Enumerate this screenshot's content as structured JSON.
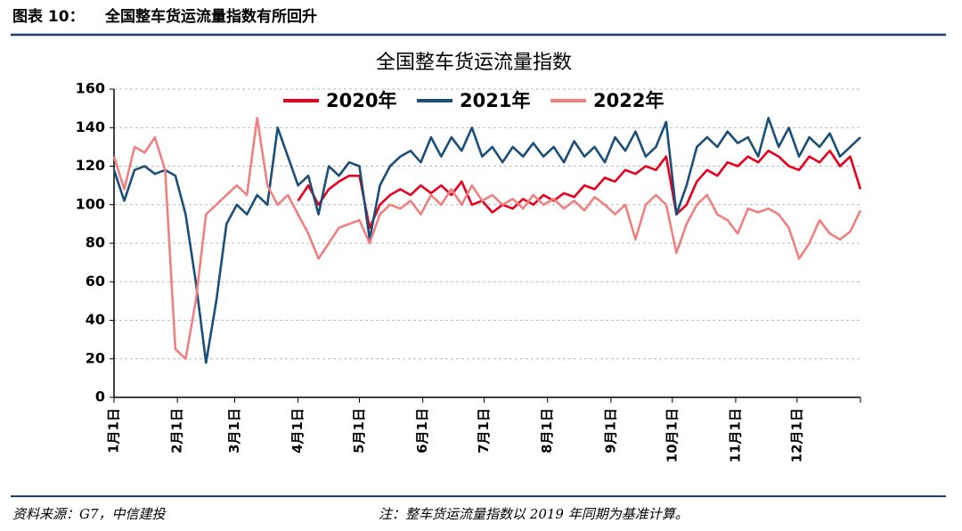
{
  "header": {
    "label": "图表 10：",
    "title": "全国整车货运流量指数有所回升"
  },
  "chart_data": {
    "type": "line",
    "title": "全国整车货运流量指数",
    "x": [
      0,
      5,
      10,
      15,
      20,
      25,
      30,
      35,
      40,
      45,
      50,
      55,
      60,
      65,
      70,
      75,
      80,
      85,
      90,
      95,
      100,
      105,
      110,
      115,
      120,
      125,
      130,
      135,
      140,
      145,
      150,
      155,
      160,
      165,
      170,
      175,
      180,
      185,
      190,
      195,
      200,
      205,
      210,
      215,
      220,
      225,
      230,
      235,
      240,
      245,
      250,
      255,
      260,
      265,
      270,
      275,
      280,
      285,
      290,
      295,
      300,
      305,
      310,
      315,
      320,
      325,
      330,
      335,
      340,
      345,
      350,
      355,
      360,
      365
    ],
    "xlim": [
      0,
      365
    ],
    "xticks": [
      {
        "value": 0,
        "label": "1月1日"
      },
      {
        "value": 31,
        "label": "2月1日"
      },
      {
        "value": 59,
        "label": "3月1日"
      },
      {
        "value": 90,
        "label": "4月1日"
      },
      {
        "value": 120,
        "label": "5月1日"
      },
      {
        "value": 151,
        "label": "6月1日"
      },
      {
        "value": 181,
        "label": "7月1日"
      },
      {
        "value": 212,
        "label": "8月1日"
      },
      {
        "value": 243,
        "label": "9月1日"
      },
      {
        "value": 273,
        "label": "10月1日"
      },
      {
        "value": 304,
        "label": "11月1日"
      },
      {
        "value": 334,
        "label": "12月1日"
      }
    ],
    "ylim": [
      0,
      160
    ],
    "yticks": [
      0,
      20,
      40,
      60,
      80,
      100,
      120,
      140,
      160
    ],
    "grid": true,
    "series": [
      {
        "name": "2020年",
        "color": "#e8001c",
        "values": [
          null,
          null,
          null,
          null,
          null,
          null,
          null,
          null,
          null,
          null,
          null,
          null,
          null,
          null,
          null,
          null,
          null,
          null,
          102,
          110,
          100,
          108,
          112,
          115,
          115,
          88,
          100,
          105,
          108,
          105,
          110,
          106,
          110,
          105,
          112,
          100,
          102,
          96,
          100,
          98,
          103,
          100,
          105,
          102,
          106,
          104,
          110,
          108,
          114,
          112,
          118,
          116,
          120,
          118,
          125,
          95,
          100,
          112,
          118,
          115,
          122,
          120,
          125,
          122,
          128,
          125,
          120,
          118,
          125,
          122,
          128,
          120,
          125,
          108
        ]
      },
      {
        "name": "2021年",
        "color": "#1a4f7a",
        "values": [
          118,
          102,
          118,
          120,
          116,
          118,
          115,
          95,
          60,
          18,
          50,
          90,
          100,
          95,
          105,
          100,
          140,
          125,
          110,
          115,
          95,
          120,
          115,
          122,
          120,
          82,
          110,
          120,
          125,
          128,
          122,
          135,
          125,
          135,
          128,
          140,
          125,
          130,
          122,
          130,
          125,
          132,
          125,
          130,
          122,
          133,
          125,
          130,
          122,
          135,
          128,
          138,
          125,
          130,
          143,
          95,
          110,
          130,
          135,
          130,
          138,
          132,
          135,
          125,
          145,
          130,
          140,
          125,
          135,
          130,
          137,
          125,
          130,
          135
        ]
      },
      {
        "name": "2022年",
        "color": "#f08080",
        "values": [
          125,
          108,
          130,
          127,
          135,
          118,
          25,
          20,
          50,
          95,
          100,
          105,
          110,
          105,
          145,
          110,
          100,
          105,
          95,
          85,
          72,
          80,
          88,
          90,
          92,
          80,
          95,
          100,
          98,
          102,
          95,
          105,
          100,
          108,
          100,
          110,
          102,
          105,
          100,
          103,
          98,
          105,
          100,
          103,
          98,
          102,
          97,
          104,
          100,
          95,
          100,
          82,
          100,
          105,
          100,
          75,
          90,
          100,
          105,
          95,
          92,
          85,
          98,
          96,
          98,
          95,
          88,
          72,
          80,
          92,
          85,
          82,
          86,
          97
        ]
      }
    ]
  },
  "footer": {
    "source": "资料来源：G7，中信建投",
    "note": "注：整车货运流量指数以 2019 年同期为基准计算。"
  }
}
